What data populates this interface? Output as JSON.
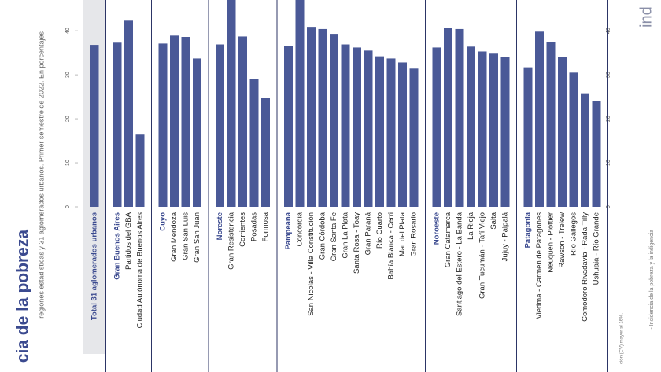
{
  "chart_data": {
    "type": "bar",
    "title": "cia de la pobreza",
    "subtitle": "regiones estadísticas y 31 aglomerados urbanos. Primer semestre de 2022. En porcentajes",
    "notes": [
      "ción (CV) mayor al 16%.",
      "- Incidencia de la pobreza y la indigencia"
    ],
    "logo": "ind",
    "color": "#4a5997",
    "ylim": [
      0,
      47
    ],
    "yticks": [
      0,
      10,
      20,
      30,
      40
    ],
    "total": {
      "name": "Total 31 aglomerados urbanos",
      "value": 36.8
    },
    "groups": [
      {
        "name": "Gran Buenos Aires",
        "value": 37.3,
        "categories": [
          "Partidos del GBA",
          "Ciudad Autónoma de Buenos Aires"
        ],
        "values": [
          42.3,
          16.4
        ]
      },
      {
        "name": "Cuyo",
        "value": 37.1,
        "categories": [
          "Gran Mendoza",
          "Gran San Luis",
          "Gran San Juan"
        ],
        "values": [
          38.9,
          38.6,
          33.7
        ]
      },
      {
        "name": "Noreste",
        "value": 36.9,
        "categories": [
          "Gran Resistencia",
          "Corrientes",
          "Posadas",
          "Formosa"
        ],
        "values": [
          47,
          38.7,
          29.0,
          24.7
        ]
      },
      {
        "name": "Pampeana",
        "value": 36.6,
        "categories": [
          "Concordia",
          "San Nicolás - Villa Constitución",
          "Gran Córdoba",
          "Gran Santa Fe",
          "Gran La Plata",
          "Santa Rosa - Toay",
          "Gran Paraná",
          "Río Cuarto",
          "Bahía Blanca - Cerri",
          "Mar del Plata",
          "Gran Rosario"
        ],
        "values": [
          47,
          40.9,
          40.4,
          39.3,
          36.9,
          36.2,
          35.5,
          34.2,
          33.7,
          32.8,
          31.4
        ]
      },
      {
        "name": "Noroeste",
        "value": 36.2,
        "categories": [
          "Gran Catamarca",
          "Santiago del Estero - La Banda",
          "La Rioja",
          "Gran Tucumán - Tafí Viejo",
          "Salta",
          "Jujuy - Palpalá"
        ],
        "values": [
          40.7,
          40.4,
          36.4,
          35.3,
          34.8,
          34.1
        ]
      },
      {
        "name": "Patagonia",
        "value": 31.7,
        "categories": [
          "Viedma - Carmen de Patagones",
          "Neuquén - Plottier",
          "Rawson - Trelew",
          "Río Gallegos",
          "Comodoro Rivadavia - Rada Tilly",
          "Ushuaia - Río Grande"
        ],
        "values": [
          39.8,
          37.5,
          34.1,
          30.5,
          25.8,
          24.1
        ]
      }
    ]
  }
}
